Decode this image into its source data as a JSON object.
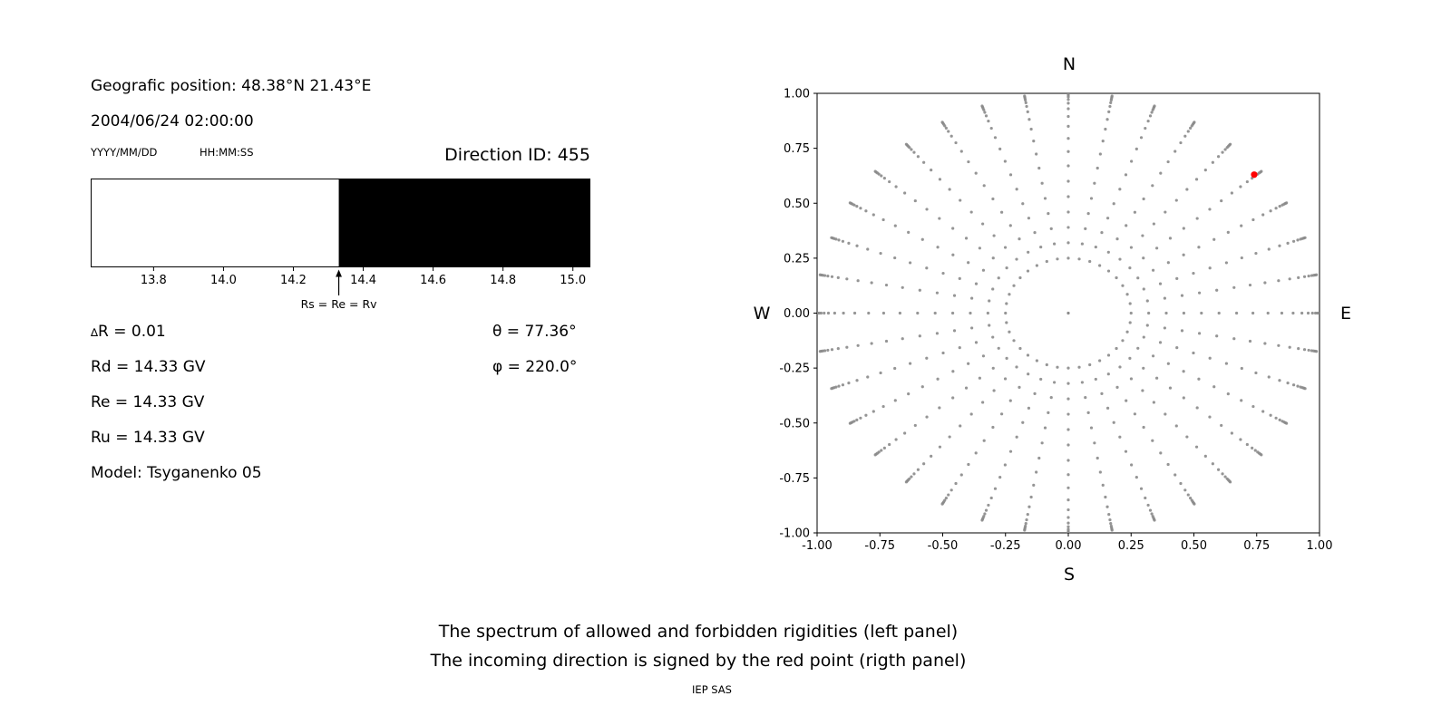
{
  "figure": {
    "background": "#ffffff",
    "text_color": "#000000"
  },
  "left_panel": {
    "position_label": "Geografic position: 48.38°N 21.43°E",
    "datetime": "2004/06/24 02:00:00",
    "date_hint": "YYYY/MM/DD",
    "time_hint": "HH:MM:SS",
    "direction_id": "Direction ID: 455",
    "delta_symbol": "∆",
    "delta_r_text": "R = 0.01",
    "rd": "Rd = 14.33 GV",
    "re": "Re = 14.33 GV",
    "ru": "Ru = 14.33 GV",
    "model": "Model: Tsyganenko 05",
    "theta": "θ = 77.36°",
    "phi": "φ = 220.0°"
  },
  "captions": {
    "line1": "The spectrum of allowed and forbidden rigidities (left panel)",
    "line2": "The incoming direction is signed by the red point (rigth panel)",
    "credit": "IEP SAS"
  },
  "chart_data": [
    {
      "id": "rigidity-spectrum",
      "type": "bar",
      "xlim": [
        13.62,
        15.05
      ],
      "xticks": [
        {
          "value": 13.8,
          "label": "13.8"
        },
        {
          "value": 14.0,
          "label": "14.0"
        },
        {
          "value": 14.2,
          "label": "14.2"
        },
        {
          "value": 14.4,
          "label": "14.4"
        },
        {
          "value": 14.6,
          "label": "14.6"
        },
        {
          "value": 14.8,
          "label": "14.8"
        },
        {
          "value": 15.0,
          "label": "15.0"
        }
      ],
      "segments": [
        {
          "name": "allowed",
          "from": 13.62,
          "to": 14.33,
          "color": "#ffffff"
        },
        {
          "name": "forbidden",
          "from": 14.33,
          "to": 15.05,
          "color": "#000000"
        }
      ],
      "marker": {
        "x": 14.33,
        "label": "Rs = Re = Rv"
      }
    },
    {
      "id": "incoming-direction-map",
      "type": "scatter",
      "xlim": [
        -1.0,
        1.0
      ],
      "ylim": [
        -1.0,
        1.0
      ],
      "xticks": [
        {
          "value": -1.0,
          "label": "-1.00"
        },
        {
          "value": -0.75,
          "label": "-0.75"
        },
        {
          "value": -0.5,
          "label": "-0.50"
        },
        {
          "value": -0.25,
          "label": "-0.25"
        },
        {
          "value": 0.0,
          "label": "0.00"
        },
        {
          "value": 0.25,
          "label": "0.25"
        },
        {
          "value": 0.5,
          "label": "0.50"
        },
        {
          "value": 0.75,
          "label": "0.75"
        },
        {
          "value": 1.0,
          "label": "1.00"
        }
      ],
      "yticks": [
        {
          "value": -1.0,
          "label": "-1.00"
        },
        {
          "value": -0.75,
          "label": "-0.75"
        },
        {
          "value": -0.5,
          "label": "-0.50"
        },
        {
          "value": -0.25,
          "label": "-0.25"
        },
        {
          "value": 0.0,
          "label": "0.00"
        },
        {
          "value": 0.25,
          "label": "0.25"
        },
        {
          "value": 0.5,
          "label": "0.50"
        },
        {
          "value": 0.75,
          "label": "0.75"
        },
        {
          "value": 1.0,
          "label": "1.00"
        }
      ],
      "compass": {
        "top": "N",
        "bottom": "S",
        "left": "W",
        "right": "E"
      },
      "spokes": {
        "count": 36,
        "angle_start_deg": 0,
        "angle_step_deg": 10,
        "radii": [
          0.25,
          0.32,
          0.39,
          0.46,
          0.53,
          0.6,
          0.67,
          0.735,
          0.795,
          0.85,
          0.895,
          0.93,
          0.955,
          0.972,
          0.984,
          0.992,
          0.998,
          1.003
        ]
      },
      "center_dot": {
        "x": 0.0,
        "y": 0.0
      },
      "dot_color": "#8a8a8a",
      "red_point": {
        "x": 0.74,
        "y": 0.63,
        "color": "#ff0000"
      }
    }
  ]
}
